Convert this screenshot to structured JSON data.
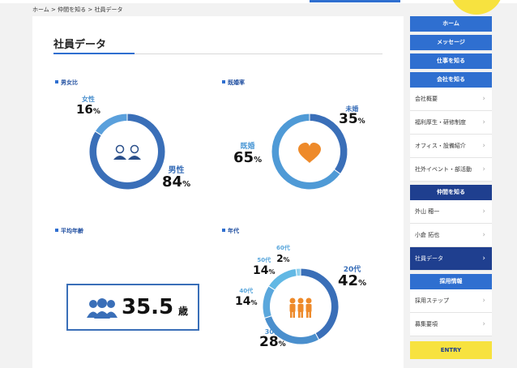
{
  "breadcrumb": {
    "home": "ホーム",
    "parent": "仲間を知る",
    "current": "社員データ",
    "sep": ">"
  },
  "page": {
    "title": "社員データ"
  },
  "sections": {
    "gender": {
      "title": "男女比"
    },
    "marriage": {
      "title": "既婚率"
    },
    "age": {
      "title": "平均年齢"
    },
    "generation": {
      "title": "年代"
    }
  },
  "gender": {
    "female": {
      "label": "女性",
      "value": "16",
      "unit": "%"
    },
    "male": {
      "label": "男性",
      "value": "84",
      "unit": "%"
    },
    "icon": "two-people-icon"
  },
  "marriage": {
    "unmarried": {
      "label": "未婚",
      "value": "35",
      "unit": "%"
    },
    "married": {
      "label": "既婚",
      "value": "65",
      "unit": "%"
    },
    "icon": "heart-icon"
  },
  "average_age": {
    "value": "35.5",
    "unit": "歳",
    "icon": "group-icon"
  },
  "generation": {
    "g60": {
      "label": "60代",
      "value": "2",
      "unit": "%"
    },
    "g50": {
      "label": "50代",
      "value": "14",
      "unit": "%"
    },
    "g40": {
      "label": "40代",
      "value": "14",
      "unit": "%"
    },
    "g30": {
      "label": "30代",
      "value": "28",
      "unit": "%"
    },
    "g20": {
      "label": "20代",
      "value": "42",
      "unit": "%"
    },
    "icon": "three-people-icon"
  },
  "sidebar": {
    "home": "ホーム",
    "message": "メッセージ",
    "work": "仕事を知る",
    "company": "会社を知る",
    "company_items": [
      "会社概要",
      "福利厚生・研修制度",
      "オフィス・設備紹介",
      "社外イベント・部活動"
    ],
    "colleagues": "仲間を知る",
    "colleague_items": [
      "外山 穂一",
      "小倉 拓也",
      "社員データ"
    ],
    "recruit": "採用情報",
    "recruit_items": [
      "採用ステップ",
      "募集要項"
    ],
    "entry": "ENTRY"
  },
  "colors": {
    "gender_male": "#3a6fb8",
    "gender_female": "#5aa0dc",
    "married": "#4f9ad6",
    "unmarried": "#3a6fb8",
    "heart": "#ee8a2a",
    "g20": "#3a6fb8",
    "g30": "#4a8fcd",
    "g40": "#5aa7dc",
    "g50": "#62b8e4",
    "g60": "#8fd0ee",
    "people_orange": "#ee8a2a",
    "entry_yellow": "#f7e23f"
  },
  "chart_data": [
    {
      "type": "pie",
      "title": "男女比",
      "categories": [
        "男性",
        "女性"
      ],
      "values": [
        84,
        16
      ]
    },
    {
      "type": "pie",
      "title": "既婚率",
      "categories": [
        "既婚",
        "未婚"
      ],
      "values": [
        65,
        35
      ]
    },
    {
      "type": "pie",
      "title": "年代",
      "categories": [
        "20代",
        "30代",
        "40代",
        "50代",
        "60代"
      ],
      "values": [
        42,
        28,
        14,
        14,
        2
      ]
    }
  ]
}
